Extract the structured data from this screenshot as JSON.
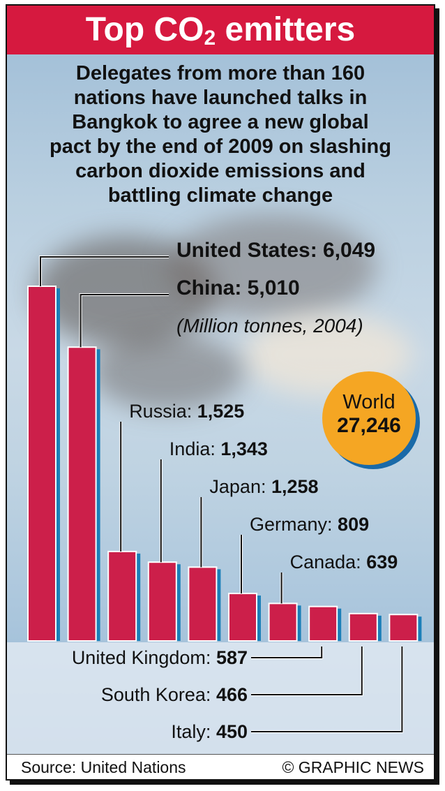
{
  "title_prefix": "Top CO",
  "title_sub": "2",
  "title_suffix": " emitters",
  "subtitle_lines": [
    "Delegates from more than 160",
    "nations have launched talks in",
    "Bangkok to agree a new global",
    "pact by the end of 2009 on slashing",
    "carbon dioxide emissions and",
    "battling climate change"
  ],
  "unit_note": "(Million tonnes, 2004)",
  "world": {
    "label": "World",
    "value": "27,246"
  },
  "source": "Source: United Nations",
  "credit": "© GRAPHIC NEWS",
  "colors": {
    "bar": "#cc1f4a",
    "bar_side": "#1a7fb8",
    "title_bg": "#d6193f",
    "world": "#f5a623"
  },
  "chart_data": {
    "type": "bar",
    "categories": [
      "United States",
      "China",
      "Russia",
      "India",
      "Japan",
      "Germany",
      "Canada",
      "United Kingdom",
      "South Korea",
      "Italy"
    ],
    "values": [
      6049,
      5010,
      1525,
      1343,
      1258,
      809,
      639,
      587,
      466,
      450
    ],
    "value_labels": [
      "6,049",
      "5,010",
      "1,525",
      "1,343",
      "1,258",
      "809",
      "639",
      "587",
      "466",
      "450"
    ],
    "unit": "(Million tonnes, 2004)"
  }
}
